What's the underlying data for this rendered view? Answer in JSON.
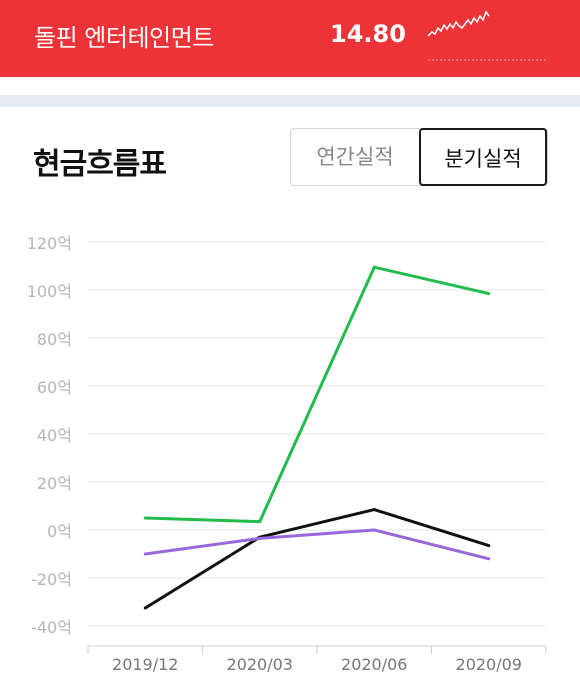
{
  "header": {
    "company_name": "돌핀 엔터테인먼트",
    "price": "14.80",
    "background_color": "#ec3338",
    "sparkline_icon": "price-sparkline-icon"
  },
  "section": {
    "title": "현금흐름표"
  },
  "period_toggle": {
    "options": [
      "연간실적",
      "분기실적"
    ],
    "selected": "분기실적"
  },
  "chart_data": {
    "type": "line",
    "x": [
      "2019/12",
      "2020/03",
      "2020/06",
      "2020/09"
    ],
    "y_ticks": [
      "120억",
      "100억",
      "80억",
      "60억",
      "40억",
      "20억",
      "0억",
      "-20억",
      "-40억"
    ],
    "y_tick_values": [
      120,
      100,
      80,
      60,
      40,
      20,
      0,
      -20,
      -40
    ],
    "ylim": [
      -40,
      120
    ],
    "grid": true,
    "series": [
      {
        "values": [
          5,
          3.5,
          109.5,
          98.5
        ],
        "color": "#22bb4c"
      },
      {
        "values": [
          -32.5,
          -3,
          8.5,
          -6.5
        ],
        "color": "#111111"
      },
      {
        "values": [
          -10,
          -3.5,
          0,
          -12
        ],
        "color": "#9966dd"
      }
    ]
  }
}
